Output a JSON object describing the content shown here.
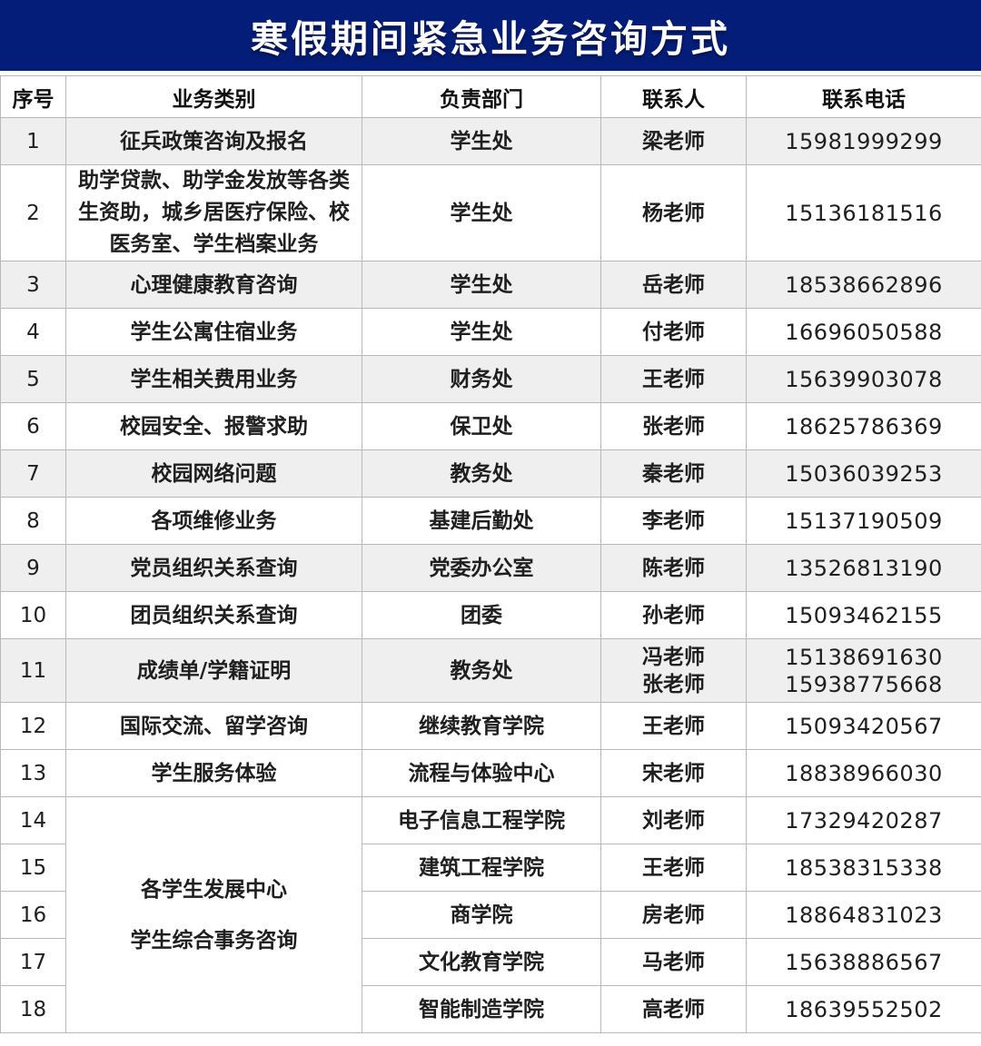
{
  "title": "寒假期间紧急业务咨询方式",
  "colors": {
    "banner_bg": "#041d78",
    "row_shaded_bg": "#efefef",
    "border": "#b9b9b9",
    "title_text": "#ffffff",
    "body_text": "#1f1f1f"
  },
  "table": {
    "headers": [
      "序号",
      "业务类别",
      "负责部门",
      "联系人",
      "联系电话"
    ],
    "rows": [
      {
        "no": "1",
        "category": "征兵政策咨询及报名",
        "dept": "学生处",
        "contact": "梁老师",
        "phone": "15981999299"
      },
      {
        "no": "2",
        "category": "助学贷款、助学金发放等各类生资助，城乡居医疗保险、校医务室、学生档案业务",
        "dept": "学生处",
        "contact": "杨老师",
        "phone": "15136181516"
      },
      {
        "no": "3",
        "category": "心理健康教育咨询",
        "dept": "学生处",
        "contact": "岳老师",
        "phone": "18538662896"
      },
      {
        "no": "4",
        "category": "学生公寓住宿业务",
        "dept": "学生处",
        "contact": "付老师",
        "phone": "16696050588"
      },
      {
        "no": "5",
        "category": "学生相关费用业务",
        "dept": "财务处",
        "contact": "王老师",
        "phone": "15639903078"
      },
      {
        "no": "6",
        "category": "校园安全、报警求助",
        "dept": "保卫处",
        "contact": "张老师",
        "phone": "18625786369"
      },
      {
        "no": "7",
        "category": "校园网络问题",
        "dept": "教务处",
        "contact": "秦老师",
        "phone": "15036039253"
      },
      {
        "no": "8",
        "category": "各项维修业务",
        "dept": "基建后勤处",
        "contact": "李老师",
        "phone": "15137190509"
      },
      {
        "no": "9",
        "category": "党员组织关系查询",
        "dept": "党委办公室",
        "contact": "陈老师",
        "phone": "13526813190"
      },
      {
        "no": "10",
        "category": "团员组织关系查询",
        "dept": "团委",
        "contact": "孙老师",
        "phone": "15093462155"
      },
      {
        "no": "11",
        "category": "成绩单/学籍证明",
        "dept": "教务处",
        "contact": "冯老师",
        "contact2": "张老师",
        "phone": "15138691630",
        "phone2": "15938775668"
      },
      {
        "no": "12",
        "category": "国际交流、留学咨询",
        "dept": "继续教育学院",
        "contact": "王老师",
        "phone": "15093420567"
      },
      {
        "no": "13",
        "category": "学生服务体验",
        "dept": "流程与体验中心",
        "contact": "宋老师",
        "phone": "18838966030"
      },
      {
        "no": "14",
        "dept": "电子信息工程学院",
        "contact": "刘老师",
        "phone": "17329420287"
      },
      {
        "no": "15",
        "dept": "建筑工程学院",
        "contact": "王老师",
        "phone": "18538315338"
      },
      {
        "no": "16",
        "dept": "商学院",
        "contact": "房老师",
        "phone": "18864831023"
      },
      {
        "no": "17",
        "dept": "文化教育学院",
        "contact": "马老师",
        "phone": "15638886567"
      },
      {
        "no": "18",
        "dept": "智能制造学院",
        "contact": "高老师",
        "phone": "18639552502"
      }
    ],
    "merged_category": {
      "line1": "各学生发展中心",
      "line2": "学生综合事务咨询"
    }
  }
}
